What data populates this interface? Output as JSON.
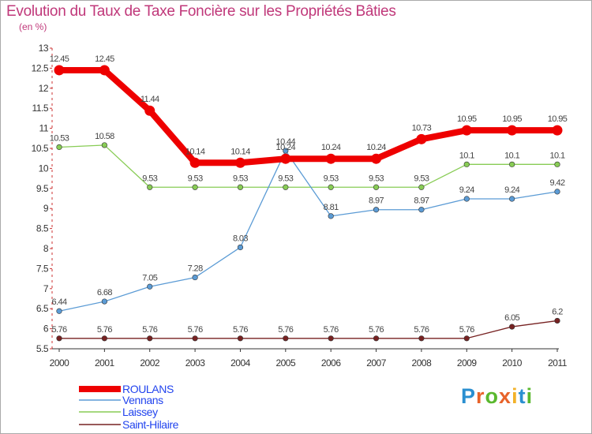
{
  "title": "Evolution du Taux de Taxe Foncière sur les Propriétés Bâties",
  "subtitle": "(en %)",
  "logo": {
    "text": "Proxiti",
    "letters": [
      "P",
      "r",
      "o",
      "x",
      "i",
      "t",
      "i"
    ],
    "colors": [
      "#2a8fd0",
      "#e8632a",
      "#5ab82e",
      "#e8632a",
      "#f2b22a",
      "#2a8fd0",
      "#5ab82e"
    ]
  },
  "chart_data": {
    "type": "line",
    "title": "Evolution du Taux de Taxe Foncière sur les Propriétés Bâties",
    "ylabel": "(en %)",
    "xlabel": "",
    "ylim": [
      5.5,
      13
    ],
    "yticks": [
      "5.5",
      "6",
      "6.5",
      "7",
      "7.5",
      "8",
      "8.5",
      "9",
      "9.5",
      "10",
      "10.5",
      "11",
      "11.5",
      "12",
      "12.5",
      "13"
    ],
    "categories": [
      "2000",
      "2001",
      "2002",
      "2003",
      "2004",
      "2005",
      "2006",
      "2007",
      "2008",
      "2009",
      "2010",
      "2011"
    ],
    "series": [
      {
        "name": "Saint-Hilaire",
        "color": "#772222",
        "values": [
          5.76,
          5.76,
          5.76,
          5.76,
          5.76,
          5.76,
          5.76,
          5.76,
          5.76,
          5.76,
          6.05,
          6.2
        ],
        "labels": [
          "5.76",
          "5.76",
          "5.76",
          "5.76",
          "5.76",
          "5.76",
          "5.76",
          "5.76",
          "5.76",
          "5.76",
          "6.05",
          "6.2"
        ]
      },
      {
        "name": "Laissey",
        "color": "#88cc55",
        "values": [
          10.53,
          10.58,
          9.53,
          9.53,
          9.53,
          9.53,
          9.53,
          9.53,
          9.53,
          10.1,
          10.1,
          10.1
        ],
        "labels": [
          "10.53",
          "10.58",
          "9.53",
          "9.53",
          "9.53",
          "9.53",
          "9.53",
          "9.53",
          "9.53",
          "10.1",
          "10.1",
          "10.1"
        ]
      },
      {
        "name": "Vennans",
        "color": "#5b9bd5",
        "values": [
          6.44,
          6.68,
          7.05,
          7.28,
          8.03,
          10.44,
          8.81,
          8.97,
          8.97,
          9.24,
          9.24,
          9.42
        ],
        "labels": [
          "6.44",
          "6.68",
          "7.05",
          "7.28",
          "8.03",
          "10.44",
          "8.81",
          "8.97",
          "8.97",
          "9.24",
          "9.24",
          "9.42"
        ]
      },
      {
        "name": "ROULANS",
        "color": "#ee0000",
        "values": [
          12.45,
          12.45,
          11.44,
          10.14,
          10.14,
          10.24,
          10.24,
          10.24,
          10.73,
          10.95,
          10.95,
          10.95
        ],
        "labels": [
          "12.45",
          "12.45",
          "11.44",
          "10.14",
          "10.14",
          "10.24",
          "10.24",
          "10.24",
          "10.73",
          "10.95",
          "10.95",
          "10.95"
        ]
      }
    ],
    "legend": [
      {
        "name": "ROULANS",
        "color": "#ee0000",
        "text_color": "#2244ee"
      },
      {
        "name": "Vennans",
        "color": "#5b9bd5",
        "text_color": "#2244ee"
      },
      {
        "name": "Laissey",
        "color": "#88cc55",
        "text_color": "#2244ee"
      },
      {
        "name": "Saint-Hilaire",
        "color": "#772222",
        "text_color": "#2244ee"
      }
    ],
    "legend_position": "bottom-left",
    "grid": false
  }
}
